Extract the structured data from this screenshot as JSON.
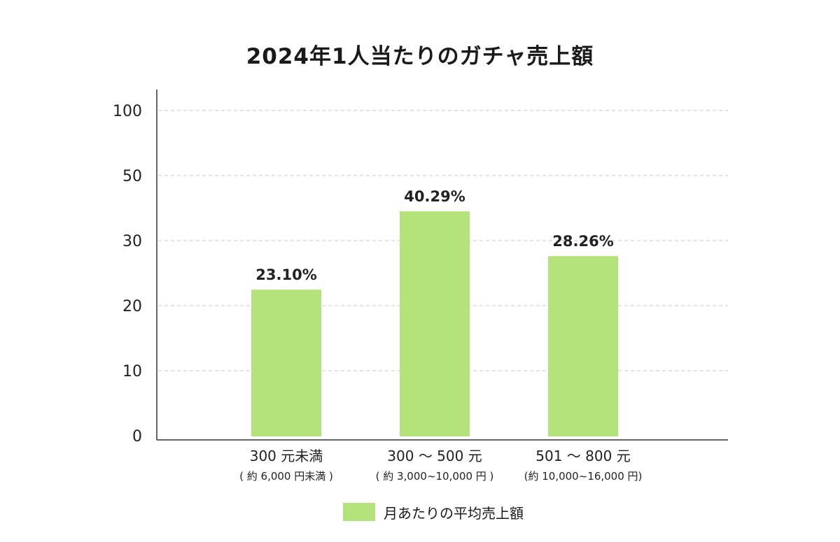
{
  "chart_data": {
    "type": "bar",
    "title": "2024年1人当たりのガチャ売上額",
    "categories": [
      "300 元未満",
      "300 〜 500 元",
      "501 〜 800 元"
    ],
    "category_sublabels": [
      "( 約 6,000 円未満 )",
      "( 約 3,000~10,000 円 )",
      "(約 10,000~16,000 円)"
    ],
    "series": [
      {
        "name": "月あたりの平均売上額",
        "values": [
          23.1,
          40.29,
          28.26
        ],
        "data_labels": [
          "23.10%",
          "40.29%",
          "28.26%"
        ],
        "color": "#b3e37a"
      }
    ],
    "y_ticks": [
      "0",
      "10",
      "20",
      "30",
      "50",
      "100"
    ],
    "grid": true,
    "legend_position": "bottom"
  }
}
